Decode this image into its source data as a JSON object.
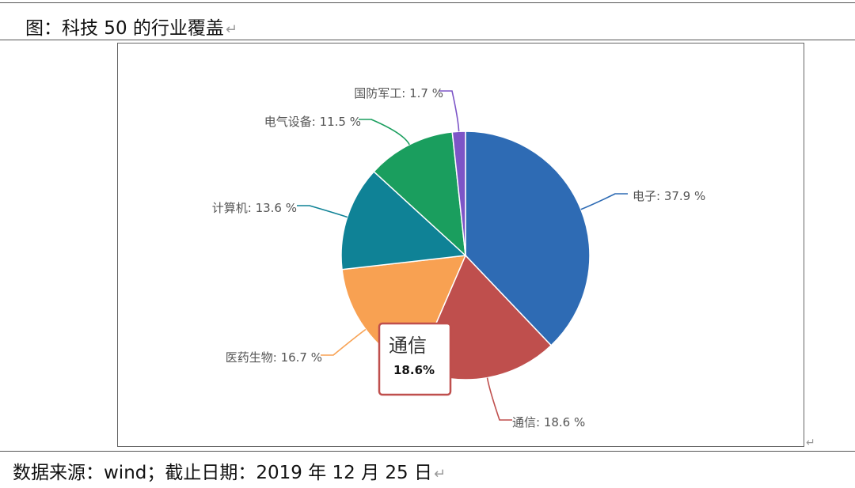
{
  "caption": "图：科技 50 的行业覆盖",
  "return_mark": "↵",
  "source": "数据来源：wind；截止日期：2019 年 12 月 25 日",
  "chart_data": {
    "type": "pie",
    "slices": [
      {
        "name": "电子",
        "value": 37.9,
        "label": "电子: 37.9 %",
        "color": "#2E6BB4"
      },
      {
        "name": "通信",
        "value": 18.6,
        "label": "通信: 18.6 %",
        "color": "#BF4F4D"
      },
      {
        "name": "医药生物",
        "value": 16.7,
        "label": "医药生物: 16.7 %",
        "color": "#F8A152"
      },
      {
        "name": "计算机",
        "value": 13.6,
        "label": "计算机: 13.6 %",
        "color": "#0F8296"
      },
      {
        "name": "电气设备",
        "value": 11.5,
        "label": "电气设备: 11.5 %",
        "color": "#1A9E5E"
      },
      {
        "name": "国防军工",
        "value": 1.7,
        "label": "国防军工: 1.7 %",
        "color": "#7D55C7"
      }
    ],
    "tooltip": {
      "name": "通信",
      "value": "18.6%"
    }
  }
}
